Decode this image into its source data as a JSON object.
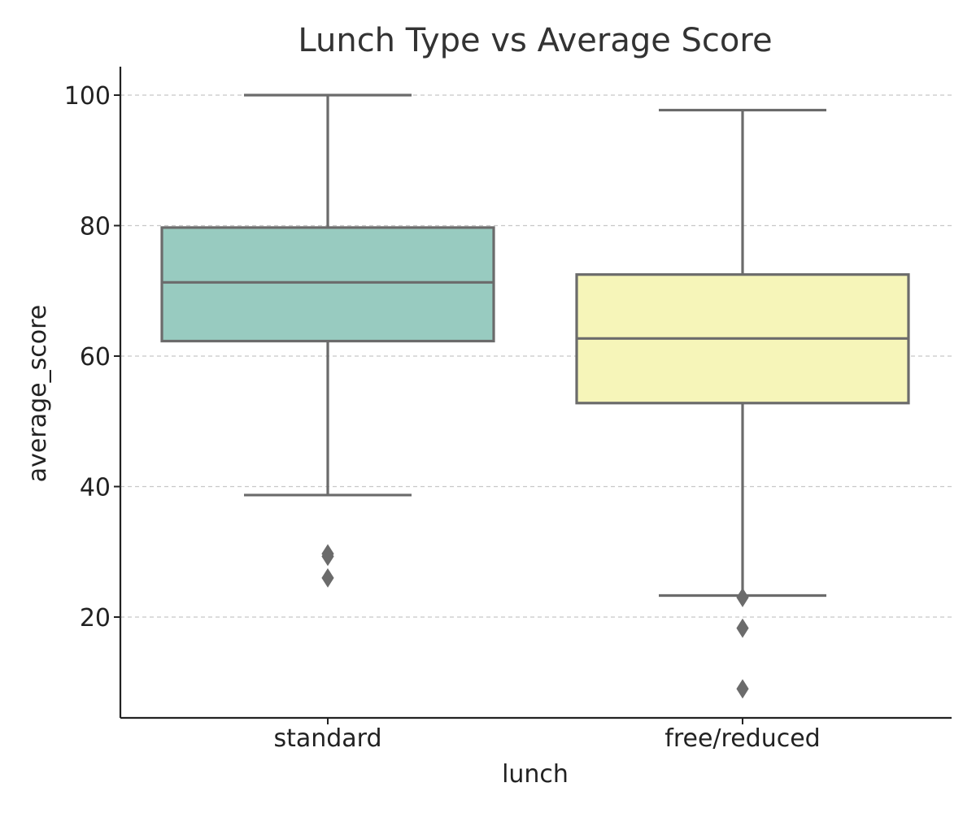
{
  "chart_data": {
    "type": "box",
    "title": "Lunch Type vs Average Score",
    "xlabel": "lunch",
    "ylabel": "average_score",
    "ylim": [
      5,
      104.5
    ],
    "yticks": [
      20,
      40,
      60,
      80,
      100
    ],
    "grid": "y",
    "categories": [
      "standard",
      "free/reduced"
    ],
    "boxes": [
      {
        "category": "standard",
        "whisker_low": 38.7,
        "q1": 62.3,
        "median": 71.3,
        "q3": 79.7,
        "whisker_high": 100,
        "outliers": [
          29.7,
          29.3,
          26.0
        ],
        "color": "#98cbc0"
      },
      {
        "category": "free/reduced",
        "whisker_low": 23.3,
        "q1": 52.8,
        "median": 62.7,
        "q3": 72.5,
        "whisker_high": 97.7,
        "outliers": [
          23.0,
          18.3,
          9.0
        ],
        "color": "#f6f5b9"
      }
    ],
    "box_edge_color": "#6b6b6b"
  }
}
